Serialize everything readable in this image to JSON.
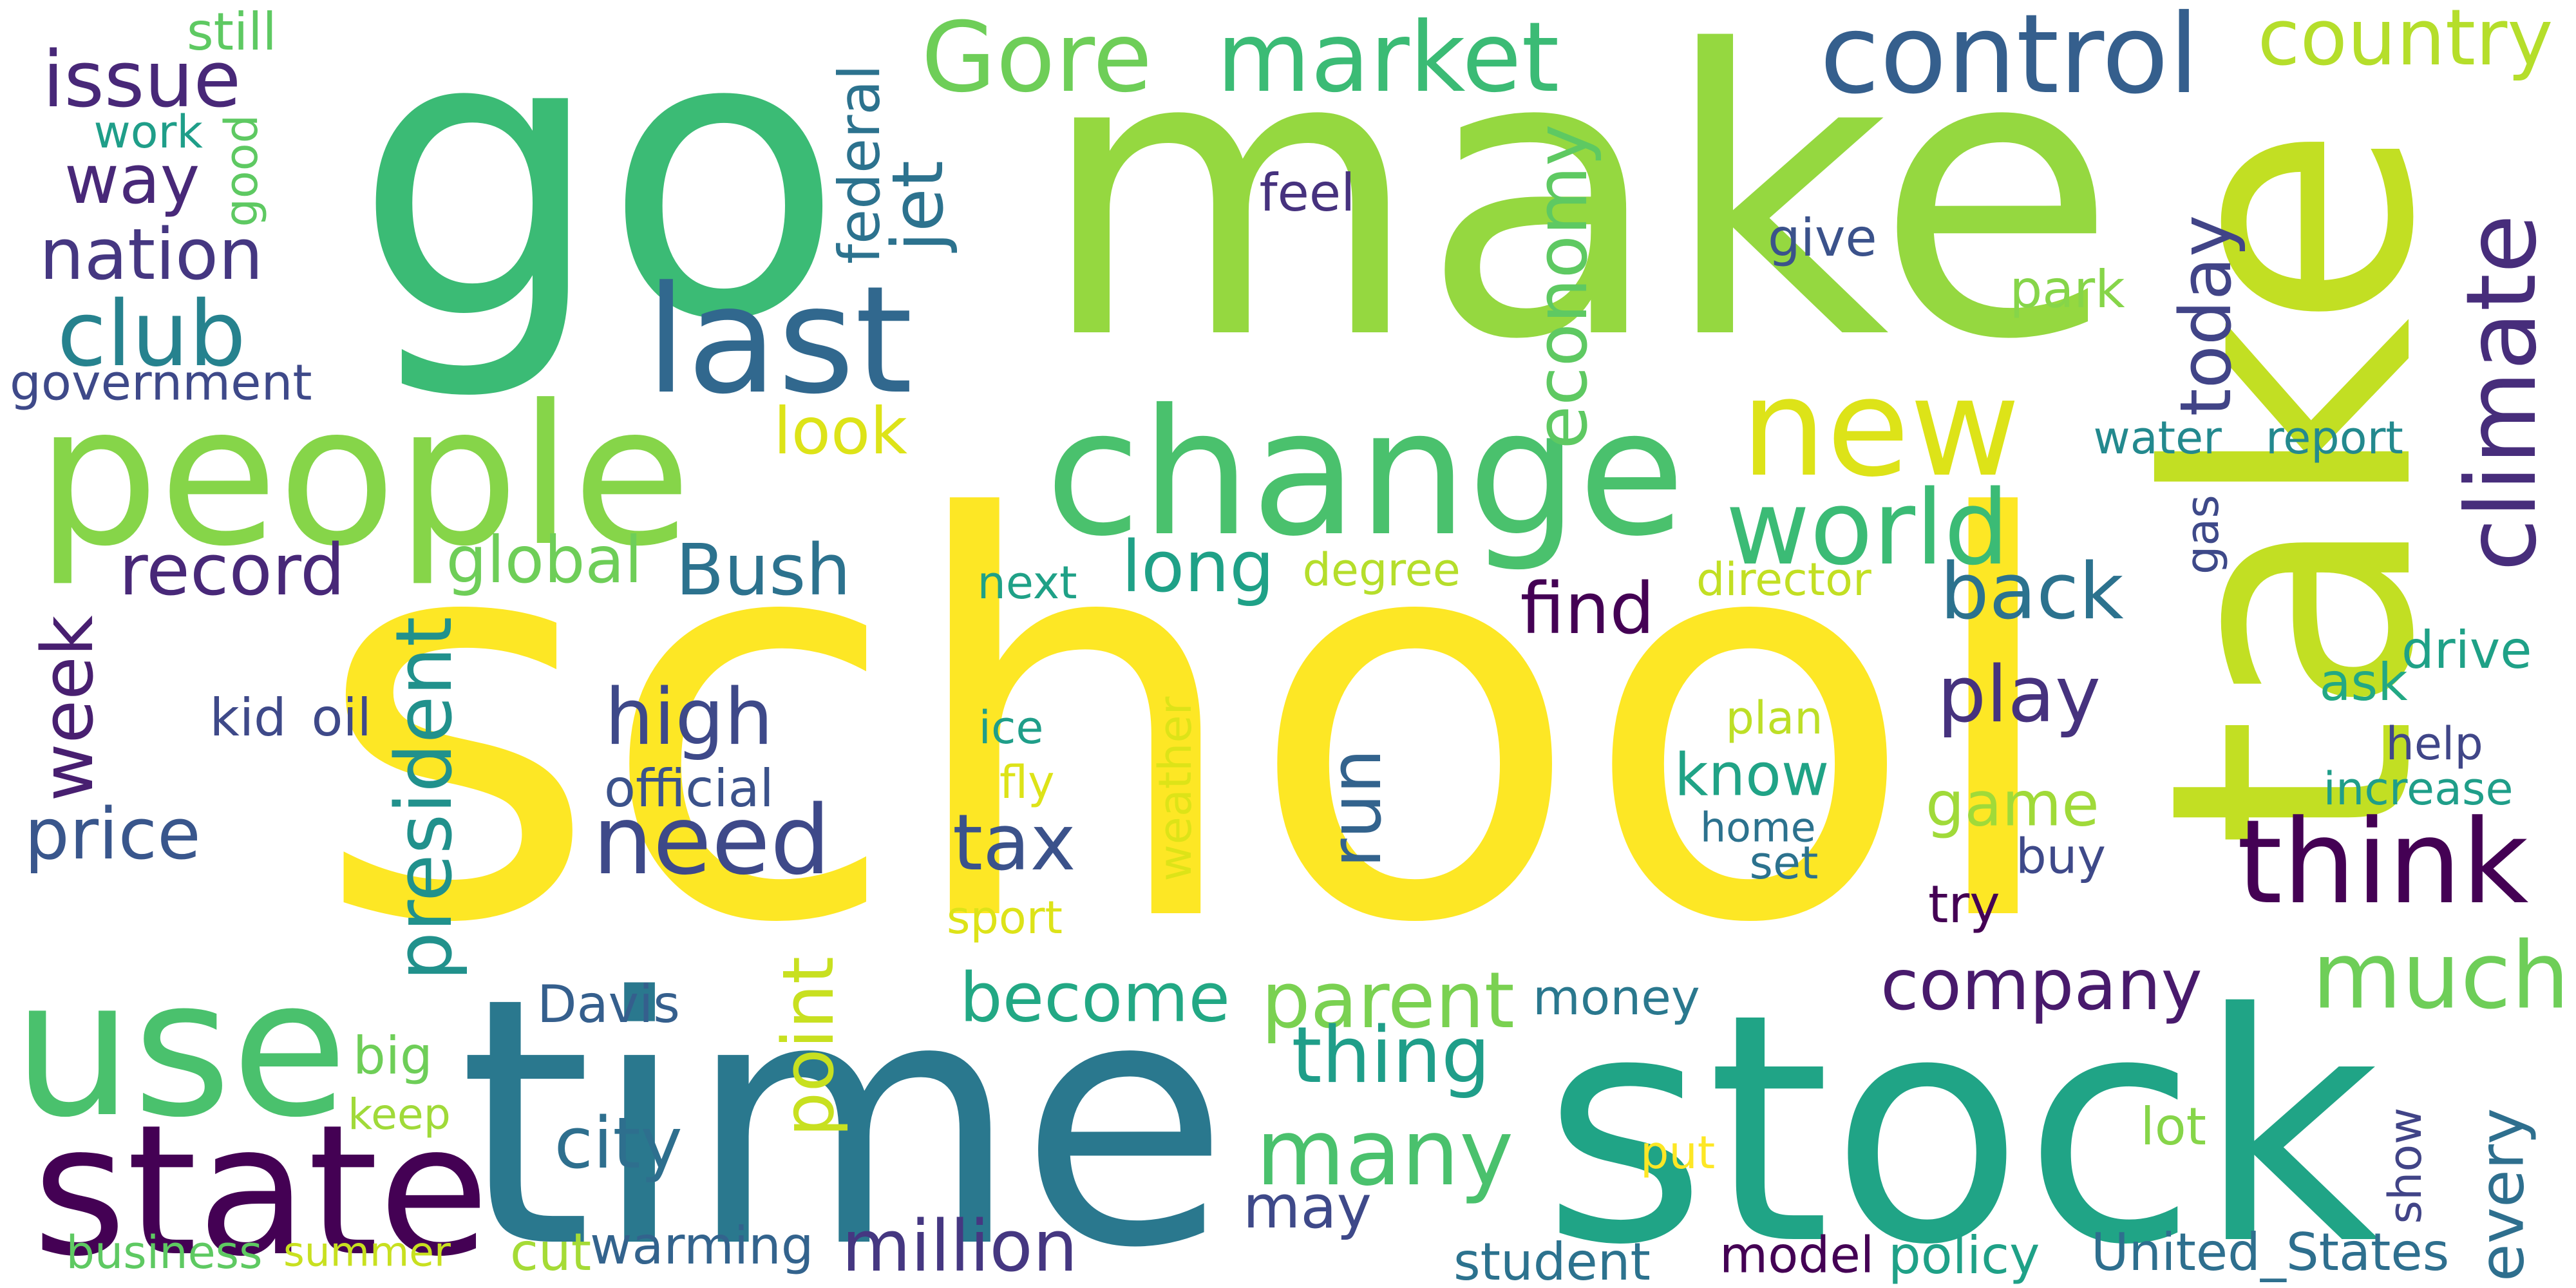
{
  "words": [
    {
      "text": "school",
      "color": "#fde725",
      "rotate": false
    },
    {
      "text": "make",
      "color": "#95d840",
      "rotate": false
    },
    {
      "text": "go",
      "color": "#3bbb75",
      "rotate": false
    },
    {
      "text": "take",
      "color": "#c2df23",
      "rotate": true
    },
    {
      "text": "time",
      "color": "#2a788e",
      "rotate": false
    },
    {
      "text": "stock",
      "color": "#20a486",
      "rotate": false
    },
    {
      "text": "state",
      "color": "#440154",
      "rotate": false
    },
    {
      "text": "people",
      "color": "#86d549",
      "rotate": false
    },
    {
      "text": "change",
      "color": "#4ac16d",
      "rotate": false
    },
    {
      "text": "use",
      "color": "#4ac16d",
      "rotate": false
    },
    {
      "text": "last",
      "color": "#31688e",
      "rotate": false
    },
    {
      "text": "new",
      "color": "#dde318",
      "rotate": false
    },
    {
      "text": "control",
      "color": "#355f8d",
      "rotate": false
    },
    {
      "text": "Gore",
      "color": "#6ece58",
      "rotate": false
    },
    {
      "text": "market",
      "color": "#3bbb75",
      "rotate": false
    },
    {
      "text": "country",
      "color": "#b5de2b",
      "rotate": false
    },
    {
      "text": "climate",
      "color": "#472d7b",
      "rotate": true
    },
    {
      "text": "think",
      "color": "#440154",
      "rotate": false
    },
    {
      "text": "much",
      "color": "#6ece58",
      "rotate": false
    },
    {
      "text": "need",
      "color": "#3e4989",
      "rotate": false
    },
    {
      "text": "world",
      "color": "#3bbb75",
      "rotate": false
    },
    {
      "text": "many",
      "color": "#4ac16d",
      "rotate": false
    },
    {
      "text": "company",
      "color": "#481a6c",
      "rotate": false
    },
    {
      "text": "issue",
      "color": "#482878",
      "rotate": false
    },
    {
      "text": "way",
      "color": "#482878",
      "rotate": false
    },
    {
      "text": "nation",
      "color": "#453781",
      "rotate": false
    },
    {
      "text": "club",
      "color": "#26828e",
      "rotate": false
    },
    {
      "text": "government",
      "color": "#3e4989",
      "rotate": false
    },
    {
      "text": "record",
      "color": "#482878",
      "rotate": false
    },
    {
      "text": "week",
      "color": "#481f70",
      "rotate": true
    },
    {
      "text": "president",
      "color": "#21918c",
      "rotate": true
    },
    {
      "text": "price",
      "color": "#39568c",
      "rotate": false
    },
    {
      "text": "high",
      "color": "#3e4989",
      "rotate": false
    },
    {
      "text": "tax",
      "color": "#3b528b",
      "rotate": false
    },
    {
      "text": "run",
      "color": "#33638d",
      "rotate": true
    },
    {
      "text": "Bush",
      "color": "#2c728e",
      "rotate": false
    },
    {
      "text": "global",
      "color": "#6ece58",
      "rotate": false
    },
    {
      "text": "look",
      "color": "#dde318",
      "rotate": false
    },
    {
      "text": "economy",
      "color": "#5ec962",
      "rotate": true
    },
    {
      "text": "jet",
      "color": "#2c728e",
      "rotate": true
    },
    {
      "text": "federal",
      "color": "#2c728e",
      "rotate": true
    },
    {
      "text": "today",
      "color": "#414487",
      "rotate": true
    },
    {
      "text": "long",
      "color": "#1fa187",
      "rotate": false
    },
    {
      "text": "back",
      "color": "#2c728e",
      "rotate": false
    },
    {
      "text": "play",
      "color": "#46327e",
      "rotate": false
    },
    {
      "text": "find",
      "color": "#440154",
      "rotate": false
    },
    {
      "text": "know",
      "color": "#20a386",
      "rotate": false
    },
    {
      "text": "game",
      "color": "#a0da39",
      "rotate": false
    },
    {
      "text": "parent",
      "color": "#7ad151",
      "rotate": false
    },
    {
      "text": "become",
      "color": "#22a884",
      "rotate": false
    },
    {
      "text": "thing",
      "color": "#1f9e89",
      "rotate": false
    },
    {
      "text": "point",
      "color": "#c8e020",
      "rotate": true
    },
    {
      "text": "city",
      "color": "#2e6f8e",
      "rotate": false
    },
    {
      "text": "may",
      "color": "#3e4989",
      "rotate": false
    },
    {
      "text": "million",
      "color": "#453781",
      "rotate": false
    },
    {
      "text": "every",
      "color": "#2e6f8e",
      "rotate": true
    },
    {
      "text": "still",
      "color": "#5ec962",
      "rotate": false
    },
    {
      "text": "work",
      "color": "#1f9e89",
      "rotate": false
    },
    {
      "text": "good",
      "color": "#5ec962",
      "rotate": true
    },
    {
      "text": "feel",
      "color": "#46327e",
      "rotate": false
    },
    {
      "text": "give",
      "color": "#3b528b",
      "rotate": false
    },
    {
      "text": "park",
      "color": "#86d549",
      "rotate": false
    },
    {
      "text": "water",
      "color": "#23898e",
      "rotate": false
    },
    {
      "text": "report",
      "color": "#23898e",
      "rotate": false
    },
    {
      "text": "gas",
      "color": "#3e4989",
      "rotate": true
    },
    {
      "text": "director",
      "color": "#c2df23",
      "rotate": false
    },
    {
      "text": "degree",
      "color": "#b5de2b",
      "rotate": false
    },
    {
      "text": "next",
      "color": "#1fa187",
      "rotate": false
    },
    {
      "text": "drive",
      "color": "#1fa187",
      "rotate": false
    },
    {
      "text": "ask",
      "color": "#22a884",
      "rotate": false
    },
    {
      "text": "help",
      "color": "#404688",
      "rotate": false
    },
    {
      "text": "increase",
      "color": "#1f9e89",
      "rotate": false
    },
    {
      "text": "plan",
      "color": "#bddf26",
      "rotate": false
    },
    {
      "text": "ice",
      "color": "#1f9e89",
      "rotate": false
    },
    {
      "text": "weather",
      "color": "#dde318",
      "rotate": true
    },
    {
      "text": "fly",
      "color": "#dde318",
      "rotate": false
    },
    {
      "text": "sport",
      "color": "#dde318",
      "rotate": false
    },
    {
      "text": "kid",
      "color": "#3e4989",
      "rotate": false
    },
    {
      "text": "oil",
      "color": "#3e4989",
      "rotate": false
    },
    {
      "text": "official",
      "color": "#3b528b",
      "rotate": false
    },
    {
      "text": "home",
      "color": "#2c728e",
      "rotate": false
    },
    {
      "text": "set",
      "color": "#2c728e",
      "rotate": false
    },
    {
      "text": "buy",
      "color": "#3e4989",
      "rotate": false
    },
    {
      "text": "try",
      "color": "#440154",
      "rotate": false
    },
    {
      "text": "money",
      "color": "#2a788e",
      "rotate": false
    },
    {
      "text": "Davis",
      "color": "#355f8d",
      "rotate": false
    },
    {
      "text": "big",
      "color": "#6ece58",
      "rotate": false
    },
    {
      "text": "keep",
      "color": "#a0da39",
      "rotate": false
    },
    {
      "text": "put",
      "color": "#fde725",
      "rotate": false
    },
    {
      "text": "lot",
      "color": "#86d549",
      "rotate": false
    },
    {
      "text": "show",
      "color": "#414487",
      "rotate": true
    },
    {
      "text": "business",
      "color": "#5ec962",
      "rotate": false
    },
    {
      "text": "summer",
      "color": "#c8e020",
      "rotate": false
    },
    {
      "text": "cut",
      "color": "#a5db36",
      "rotate": false
    },
    {
      "text": "warming",
      "color": "#33638d",
      "rotate": false
    },
    {
      "text": "student",
      "color": "#2c728e",
      "rotate": false
    },
    {
      "text": "model",
      "color": "#440154",
      "rotate": false
    },
    {
      "text": "policy",
      "color": "#1fa187",
      "rotate": false
    },
    {
      "text": "United_States",
      "color": "#2e6f8e",
      "rotate": false
    }
  ]
}
